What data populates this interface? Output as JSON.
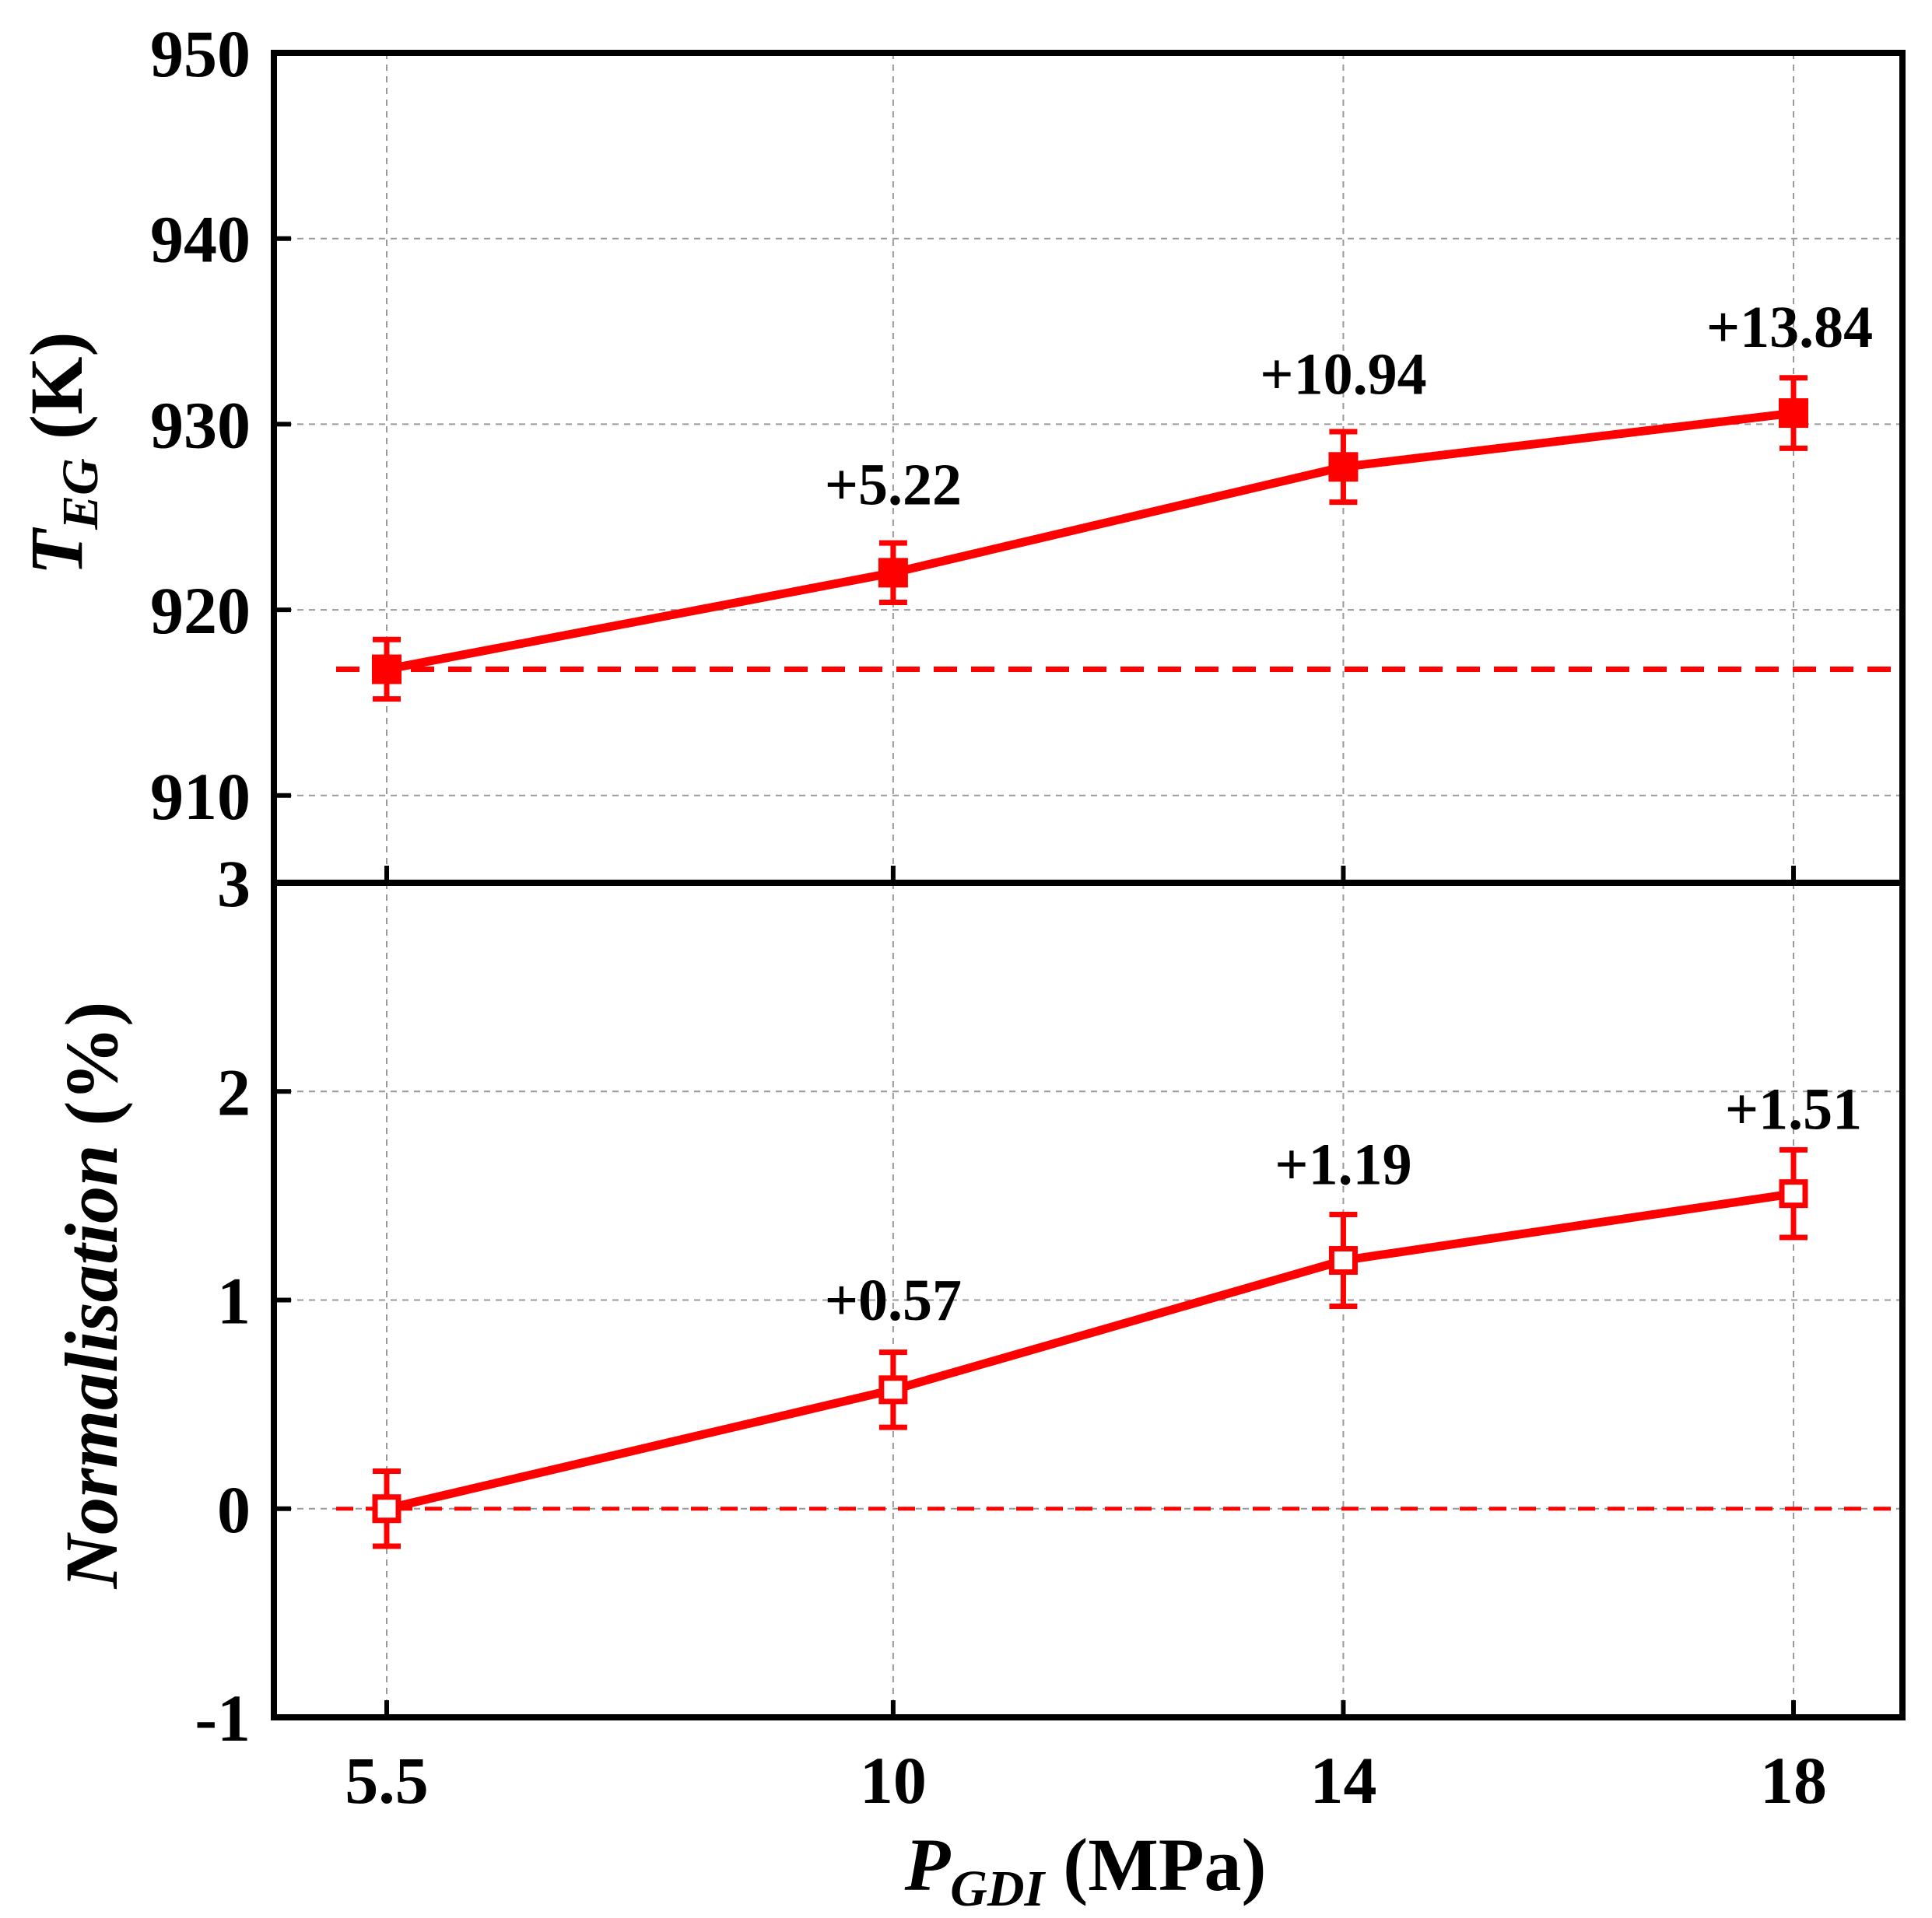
{
  "colors": {
    "series": "#ff0000",
    "axis": "#000000",
    "grid": "#9a9a9a"
  },
  "x_label": {
    "main": "P",
    "sub": "GDI",
    "unit": "(MPa)"
  },
  "chart_data": [
    {
      "type": "line",
      "panel": "top",
      "x_categories": [
        "5.5",
        "10",
        "14",
        "18"
      ],
      "x": [
        5.5,
        10,
        14,
        18
      ],
      "values": [
        916.8,
        922.0,
        927.7,
        930.6
      ],
      "errors": [
        1.6,
        1.6,
        1.9,
        1.9
      ],
      "marker": "filled-square",
      "reference_line": 916.8,
      "ylim": [
        905.3,
        950
      ],
      "yticks": [
        "950",
        "940",
        "930",
        "920",
        "910"
      ],
      "ylabel": {
        "main": "T",
        "sub": "EG",
        "unit": "(K)"
      },
      "annotations": [
        "+5.22",
        "+10.94",
        "+13.84"
      ]
    },
    {
      "type": "line",
      "panel": "bottom",
      "x_categories": [
        "5.5",
        "10",
        "14",
        "18"
      ],
      "x": [
        5.5,
        10,
        14,
        18
      ],
      "values": [
        0.0,
        0.57,
        1.19,
        1.51
      ],
      "errors": [
        0.18,
        0.18,
        0.22,
        0.21
      ],
      "marker": "open-square",
      "reference_line": 0,
      "ylim": [
        -1,
        3
      ],
      "yticks": [
        "3",
        "2",
        "1",
        "0",
        "-1"
      ],
      "ylabel": {
        "main": "Normalisation",
        "unit": "(%)"
      },
      "annotations": [
        "+0.57",
        "+1.19",
        "+1.51"
      ]
    }
  ]
}
